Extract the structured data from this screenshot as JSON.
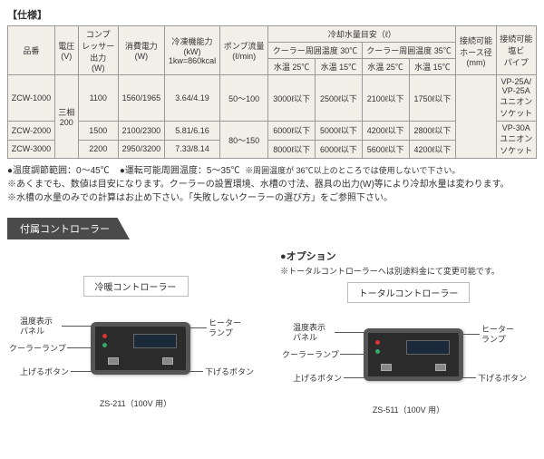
{
  "spec_title": "【仕様】",
  "table": {
    "headers": {
      "model": "品番",
      "voltage": "電圧\n(V)",
      "compressor": "コンプ\nレッサー\n出力\n(W)",
      "power": "消費電力\n(W)",
      "cooling": "冷凍機能力\n(kW)\n1kw=860kcal",
      "pump": "ポンプ流量\n(ℓ/min)",
      "cooling_water": "冷却水量目安（ℓ）",
      "cooler30": "クーラー周囲温度 30℃",
      "cooler35": "クーラー周囲温度 35℃",
      "w25": "水温 25℃",
      "w15": "水温 15℃",
      "hose": "接続可能\nホース径\n(mm)",
      "pipe": "接続可能\n塩ビ\nパイプ"
    },
    "voltage_val": "三相\n200",
    "rows": [
      {
        "model": "ZCW-1000",
        "comp": "1100",
        "power": "1560/1965",
        "cool": "3.64/4.19",
        "pump": "50～100",
        "c30_25": "3000ℓ以下",
        "c30_15": "2500ℓ以下",
        "c35_25": "2100ℓ以下",
        "c35_15": "1750ℓ以下",
        "pipe": "VP-25A/\nVP-25A\nユニオン\nソケット"
      },
      {
        "model": "ZCW-2000",
        "comp": "1500",
        "power": "2100/2300",
        "cool": "5.81/6.16",
        "pump": "80～150",
        "c30_25": "6000ℓ以下",
        "c30_15": "5000ℓ以下",
        "c35_25": "4200ℓ以下",
        "c35_15": "2800ℓ以下",
        "pipe": "VP-30A\nユニオン\nソケット"
      },
      {
        "model": "ZCW-3000",
        "comp": "2200",
        "power": "2950/3200",
        "cool": "7.33/8.14",
        "pump": "",
        "c30_25": "8000ℓ以下",
        "c30_15": "6000ℓ以下",
        "c35_25": "5600ℓ以下",
        "c35_15": "4200ℓ以下",
        "pipe": ""
      }
    ]
  },
  "notes": {
    "n1a": "●温度調節範囲：0～45℃",
    "n1b": "●運転可能周囲温度：5～35℃",
    "n1c": "※周囲温度が 36℃以上のところでは使用しないで下さい。",
    "n2": "※あくまでも、数値は目安になります。クーラーの設置環境、水槽の寸法、器具の出力(W)等により冷却水量は変わります。",
    "n3": "※水槽の水量のみでの計算はお止め下さい。「失敗しないクーラーの選び方」をご参照下さい。"
  },
  "section_tab": "付属コントローラー",
  "ctrl": {
    "left_title": "冷暖コントローラー",
    "right_option": "●オプション",
    "right_note": "※トータルコントローラーへは別途料金にて変更可能です。",
    "right_title": "トータルコントローラー",
    "labels": {
      "temp_panel": "温度表示\nパネル",
      "cooler_lamp": "クーラーランプ",
      "up_btn": "上げるボタン",
      "heater_lamp": "ヒーター\nランプ",
      "down_btn": "下げるボタン"
    },
    "model_left": "ZS-211（100V 用）",
    "model_right": "ZS-511（100V 用）"
  }
}
